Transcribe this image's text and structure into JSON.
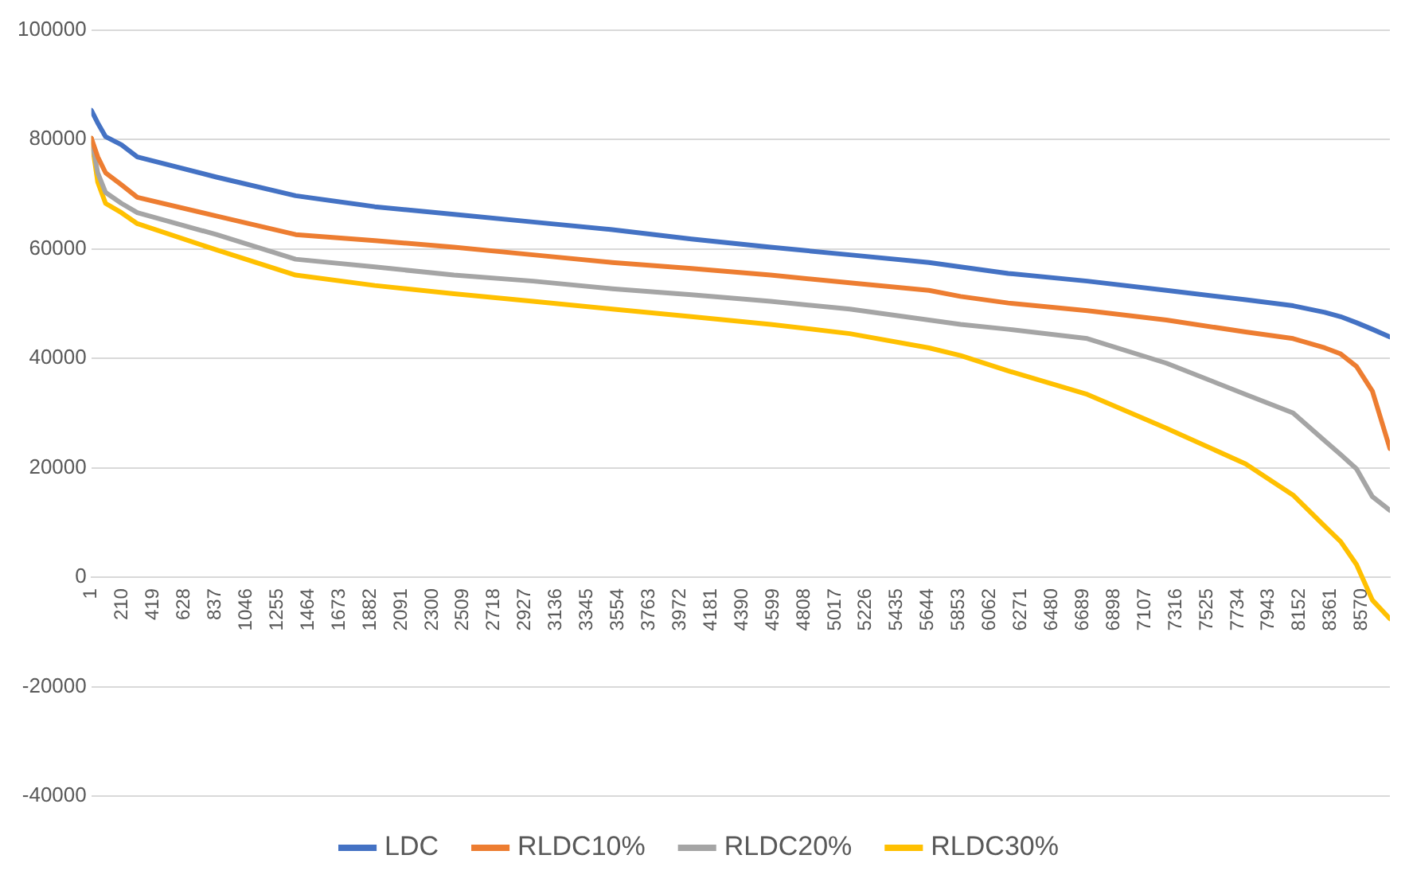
{
  "chart_data": {
    "type": "line",
    "x": [
      1,
      44,
      97,
      204,
      311,
      845,
      1379,
      1913,
      2447,
      2981,
      3515,
      4049,
      4583,
      5117,
      5651,
      5864,
      6185,
      6719,
      7253,
      7787,
      8107,
      8321,
      8428,
      8535,
      8642,
      8760
    ],
    "series": [
      {
        "name": "LDC",
        "color": "#4472c4",
        "values": [
          85300,
          83000,
          80500,
          79000,
          76800,
          73100,
          69700,
          67700,
          66300,
          64900,
          63500,
          61800,
          60300,
          58900,
          57500,
          56700,
          55500,
          54100,
          52400,
          50700,
          49600,
          48400,
          47600,
          46500,
          45300,
          43900
        ]
      },
      {
        "name": "RLDC10%",
        "color": "#ed7d31",
        "values": [
          80200,
          76800,
          73900,
          71700,
          69400,
          66000,
          62600,
          61500,
          60300,
          58900,
          57500,
          56400,
          55200,
          53800,
          52400,
          51300,
          50100,
          48700,
          47000,
          44800,
          43600,
          41900,
          40800,
          38500,
          34000,
          23500
        ]
      },
      {
        "name": "RLDC20%",
        "color": "#a5a5a5",
        "values": [
          80200,
          73900,
          70300,
          68300,
          66600,
          62600,
          58100,
          56700,
          55200,
          54100,
          52700,
          51600,
          50400,
          49000,
          47000,
          46200,
          45300,
          43600,
          39100,
          33400,
          30000,
          24900,
          22400,
          19800,
          14700,
          12200
        ]
      },
      {
        "name": "RLDC30%",
        "color": "#ffc000",
        "values": [
          80200,
          72200,
          68300,
          66600,
          64600,
          59800,
          55200,
          53300,
          51800,
          50400,
          49000,
          47600,
          46200,
          44500,
          41900,
          40500,
          37700,
          33400,
          27200,
          20700,
          15000,
          9300,
          6500,
          2300,
          -4200,
          -7600
        ]
      }
    ],
    "xlim": [
      1,
      8760
    ],
    "xticks": [
      1,
      210,
      419,
      628,
      837,
      1046,
      1255,
      1464,
      1673,
      1882,
      2091,
      2300,
      2509,
      2718,
      2927,
      3136,
      3345,
      3554,
      3763,
      3972,
      4181,
      4390,
      4599,
      4808,
      5017,
      5226,
      5435,
      5644,
      5853,
      6062,
      6271,
      6480,
      6689,
      6898,
      7107,
      7316,
      7525,
      7734,
      7943,
      8152,
      8361,
      8570
    ],
    "ylim": [
      -40000,
      100000
    ],
    "yticks": [
      -40000,
      -20000,
      0,
      20000,
      40000,
      60000,
      80000,
      100000
    ],
    "grid": "y",
    "legend": "bottom"
  }
}
